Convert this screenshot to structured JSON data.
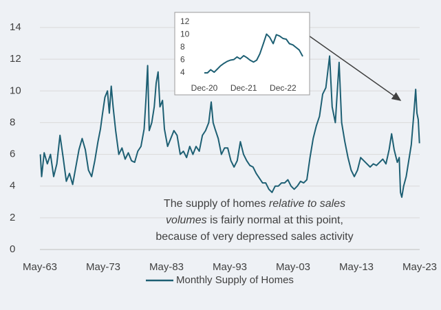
{
  "chart_data": [
    {
      "type": "line",
      "x": [
        1963.4,
        1963.6,
        1964,
        1964.5,
        1965,
        1965.5,
        1966,
        1966.5,
        1967,
        1967.5,
        1968,
        1968.5,
        1969,
        1969.5,
        1970,
        1970.5,
        1971,
        1971.5,
        1972,
        1972.5,
        1972.9,
        1973.2,
        1973.6,
        1974,
        1974.3,
        1974.6,
        1974.9,
        1975.3,
        1975.8,
        1976.3,
        1976.8,
        1977.3,
        1977.8,
        1978.3,
        1978.8,
        1979.3,
        1979.8,
        1980.1,
        1980.35,
        1980.6,
        1981,
        1981.4,
        1981.7,
        1982,
        1982.3,
        1982.7,
        1983,
        1983.5,
        1984,
        1984.5,
        1985,
        1985.5,
        1986,
        1986.5,
        1987,
        1987.5,
        1988,
        1988.5,
        1989,
        1989.5,
        1990,
        1990.4,
        1990.7,
        1991,
        1991.5,
        1992,
        1992.5,
        1993,
        1993.5,
        1994,
        1994.5,
        1995,
        1995.5,
        1996,
        1996.5,
        1997,
        1997.5,
        1998,
        1998.5,
        1999,
        1999.5,
        2000,
        2000.5,
        2001,
        2001.5,
        2002,
        2002.5,
        2003,
        2003.5,
        2004,
        2004.5,
        2005,
        2005.5,
        2006,
        2006.5,
        2007,
        2007.5,
        2008,
        2008.5,
        2008.9,
        2009.1,
        2009.5,
        2010,
        2010.6,
        2011,
        2011.5,
        2012,
        2012.5,
        2013,
        2013.5,
        2014,
        2014.5,
        2015,
        2015.5,
        2016,
        2016.5,
        2017,
        2017.5,
        2018,
        2018.5,
        2018.9,
        2019.3,
        2019.8,
        2020.1,
        2020.3,
        2020.5,
        2020.8,
        2021.2,
        2021.6,
        2022,
        2022.4,
        2022.7,
        2022.9,
        2023.1,
        2023.3
      ],
      "series": [
        {
          "name": "Monthly Supply of Homes",
          "color": "#1d5f73",
          "values": [
            6.0,
            4.6,
            6.1,
            5.4,
            6.0,
            4.6,
            5.4,
            7.2,
            5.8,
            4.3,
            4.8,
            4.1,
            5.2,
            6.3,
            7.0,
            6.3,
            5.0,
            4.6,
            5.6,
            6.8,
            7.6,
            8.5,
            9.6,
            10.0,
            8.6,
            10.3,
            9.0,
            7.5,
            6.0,
            6.4,
            5.7,
            6.1,
            5.6,
            5.5,
            6.2,
            6.5,
            7.6,
            9.6,
            11.6,
            7.5,
            8.0,
            9.0,
            10.5,
            11.2,
            9.0,
            9.4,
            7.6,
            6.5,
            7.0,
            7.5,
            7.2,
            6.0,
            6.2,
            5.8,
            6.5,
            6.0,
            6.5,
            6.2,
            7.2,
            7.5,
            8.0,
            9.3,
            8.0,
            7.6,
            7.0,
            6.0,
            6.4,
            6.4,
            5.6,
            5.2,
            5.6,
            6.8,
            6.0,
            5.6,
            5.3,
            5.2,
            4.8,
            4.5,
            4.2,
            4.2,
            3.8,
            3.6,
            4.0,
            4.0,
            4.2,
            4.2,
            4.4,
            4.0,
            3.8,
            4.0,
            4.3,
            4.2,
            4.4,
            5.8,
            7.0,
            7.8,
            8.4,
            9.8,
            10.2,
            11.5,
            12.2,
            9.0,
            8.0,
            11.8,
            8.0,
            6.8,
            5.8,
            5.0,
            4.6,
            5.0,
            5.8,
            5.6,
            5.4,
            5.2,
            5.4,
            5.3,
            5.5,
            5.7,
            5.4,
            6.3,
            7.3,
            6.3,
            5.5,
            5.8,
            3.6,
            3.3,
            4.0,
            4.6,
            5.6,
            6.6,
            8.5,
            10.1,
            8.6,
            8.2,
            6.7
          ]
        }
      ],
      "xlim": [
        1963.33,
        2023.33
      ],
      "xticks": [
        {
          "value": 1963.33,
          "label": "May-63"
        },
        {
          "value": 1973.33,
          "label": "May-73"
        },
        {
          "value": 1983.33,
          "label": "May-83"
        },
        {
          "value": 1993.33,
          "label": "May-93"
        },
        {
          "value": 2003.33,
          "label": "May-03"
        },
        {
          "value": 2013.33,
          "label": "May-13"
        },
        {
          "value": 2023.33,
          "label": "May-23"
        }
      ],
      "ylim": [
        0,
        14
      ],
      "yticks": [
        0,
        2,
        4,
        6,
        8,
        10,
        12,
        14
      ],
      "grid": true,
      "annotation": [
        "The supply of homes",
        "relative to sales",
        "volumes",
        "is fairly normal at this point,",
        "because of very depressed sales activity"
      ],
      "legend": "bottom"
    },
    {
      "type": "line",
      "x": [
        2020.92,
        2021,
        2021.08,
        2021.17,
        2021.25,
        2021.33,
        2021.42,
        2021.5,
        2021.58,
        2021.67,
        2021.75,
        2021.83,
        2021.92,
        2022,
        2022.08,
        2022.17,
        2022.25,
        2022.33,
        2022.42,
        2022.5,
        2022.58,
        2022.67,
        2022.75,
        2022.83,
        2022.92,
        2023,
        2023.08,
        2023.17,
        2023.25,
        2023.33,
        2023.42
      ],
      "series": [
        {
          "color": "#1d5f73",
          "values": [
            4.0,
            4.0,
            4.5,
            4.1,
            4.6,
            5.1,
            5.5,
            5.8,
            6.0,
            6.1,
            6.5,
            6.2,
            6.7,
            6.4,
            6.0,
            5.7,
            6.0,
            7.0,
            8.6,
            10.1,
            9.6,
            8.6,
            10.0,
            9.8,
            9.4,
            9.3,
            8.6,
            8.4,
            8.0,
            7.6,
            6.6
          ]
        }
      ],
      "xlim": [
        2020.92,
        2023.42
      ],
      "xticks": [
        {
          "value": 2020.92,
          "label": "Dec-20"
        },
        {
          "value": 2021.92,
          "label": "Dec-21"
        },
        {
          "value": 2022.92,
          "label": "Dec-22"
        }
      ],
      "ylim": [
        4,
        12
      ],
      "yticks": [
        4,
        6,
        8,
        10,
        12
      ],
      "grid": false
    }
  ]
}
